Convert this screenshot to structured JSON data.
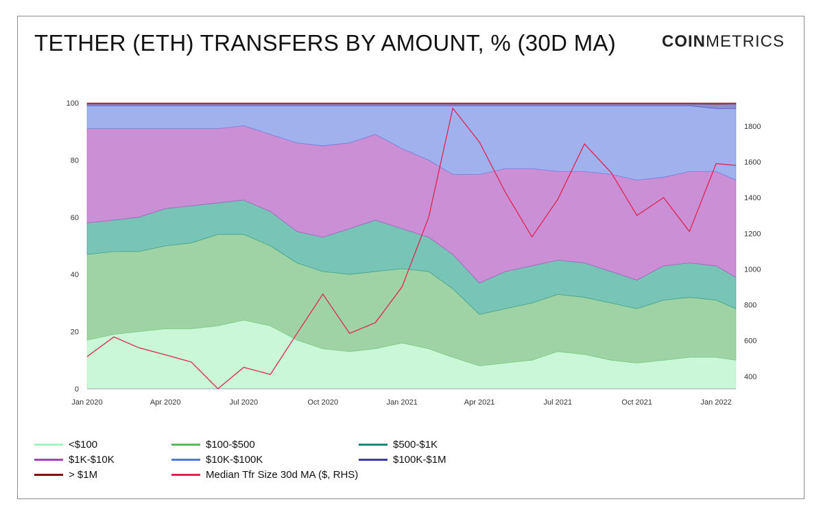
{
  "title": "TETHER (ETH) TRANSFERS BY AMOUNT, % (30D MA)",
  "logo": {
    "bold": "COIN",
    "light": "METRICS"
  },
  "chart_data": {
    "type": "area",
    "stacked": true,
    "x": [
      "2020-01-01",
      "2020-02-01",
      "2020-03-01",
      "2020-04-01",
      "2020-05-01",
      "2020-06-01",
      "2020-07-01",
      "2020-08-01",
      "2020-09-01",
      "2020-10-01",
      "2020-11-01",
      "2020-12-01",
      "2021-01-01",
      "2021-02-01",
      "2021-03-01",
      "2021-04-01",
      "2021-05-01",
      "2021-06-01",
      "2021-07-01",
      "2021-08-01",
      "2021-09-01",
      "2021-10-01",
      "2021-11-01",
      "2021-12-01",
      "2022-01-01",
      "2022-01-24"
    ],
    "x_ticks": [
      "Jan 2020",
      "Apr 2020",
      "Jul 2020",
      "Oct 2020",
      "Jan 2021",
      "Apr 2021",
      "Jul 2021",
      "Oct 2021",
      "Jan 2022"
    ],
    "y_ticks_left": [
      "0",
      "20",
      "40",
      "60",
      "80",
      "100"
    ],
    "y_ticks_right": [
      "400",
      "600",
      "800",
      "1000",
      "1200",
      "1400",
      "1600",
      "1800"
    ],
    "ylim_left": [
      0,
      100
    ],
    "ylim_right": [
      330,
      1930
    ],
    "series": [
      {
        "name": "<$100",
        "color": "#c9f7d8",
        "legend_color": "#a6f2c3",
        "values": [
          17,
          19,
          20,
          21,
          21,
          22,
          24,
          22,
          17,
          14,
          13,
          14,
          16,
          14,
          11,
          8,
          9,
          10,
          13,
          12,
          10,
          9,
          10,
          11,
          11,
          10
        ]
      },
      {
        "name": "$100-$500",
        "color": "#9fd3a6",
        "legend_color": "#5cb85c",
        "values": [
          30,
          29,
          28,
          29,
          30,
          32,
          30,
          28,
          27,
          27,
          27,
          27,
          26,
          27,
          24,
          18,
          19,
          20,
          20,
          20,
          20,
          19,
          21,
          21,
          20,
          18
        ]
      },
      {
        "name": "$500-$1K",
        "color": "#78c5b8",
        "legend_color": "#17897a",
        "values": [
          11,
          11,
          12,
          13,
          13,
          11,
          12,
          12,
          11,
          12,
          16,
          18,
          14,
          12,
          12,
          11,
          13,
          13,
          12,
          12,
          11,
          10,
          12,
          12,
          12,
          11
        ]
      },
      {
        "name": "$1K-$10K",
        "color": "#cb8fd6",
        "legend_color": "#a541bd",
        "values": [
          33,
          32,
          31,
          28,
          27,
          26,
          26,
          27,
          31,
          32,
          30,
          30,
          28,
          27,
          28,
          38,
          36,
          34,
          31,
          32,
          34,
          35,
          31,
          32,
          33,
          34
        ]
      },
      {
        "name": "$10K-$100K",
        "color": "#a1b1ee",
        "legend_color": "#4f78dc",
        "values": [
          8,
          8,
          8,
          8,
          8,
          8,
          7,
          10,
          13,
          14,
          13,
          10,
          15,
          19,
          24,
          24,
          22,
          22,
          23,
          23,
          24,
          26,
          25,
          23,
          22,
          25
        ]
      },
      {
        "name": "$100K-$1M",
        "color": "#8d8dd0",
        "legend_color": "#3b3aa8",
        "values": [
          0.6,
          0.6,
          0.6,
          0.6,
          0.6,
          0.6,
          0.6,
          0.6,
          0.6,
          0.6,
          0.6,
          0.6,
          0.6,
          0.6,
          0.6,
          0.6,
          0.6,
          0.6,
          0.6,
          0.6,
          0.6,
          0.6,
          0.6,
          0.6,
          1.5,
          1.6
        ]
      },
      {
        "name": "> $1M",
        "color": "#b24646",
        "legend_color": "#7a0f10",
        "values": [
          0.4,
          0.4,
          0.4,
          0.4,
          0.4,
          0.4,
          0.4,
          0.4,
          0.4,
          0.4,
          0.4,
          0.4,
          0.4,
          0.4,
          0.4,
          0.4,
          0.4,
          0.4,
          0.4,
          0.4,
          0.4,
          0.4,
          0.4,
          0.4,
          0.5,
          0.4
        ]
      }
    ],
    "line_series": {
      "name": "Median Tfr Size 30d MA ($, RHS)",
      "axis": "right",
      "color": "#e0234e",
      "values": [
        510,
        620,
        560,
        520,
        480,
        330,
        450,
        410,
        640,
        860,
        640,
        700,
        900,
        1290,
        1900,
        1710,
        1430,
        1180,
        1390,
        1700,
        1540,
        1300,
        1400,
        1210,
        1590,
        1580
      ]
    }
  },
  "legend": [
    {
      "label": "<$100",
      "color": "#a6f2c3"
    },
    {
      "label": "$100-$500",
      "color": "#5cb85c"
    },
    {
      "label": "$500-$1K",
      "color": "#17897a"
    },
    {
      "label": "$1K-$10K",
      "color": "#a541bd"
    },
    {
      "label": "$10K-$100K",
      "color": "#4f78dc"
    },
    {
      "label": "$100K-$1M",
      "color": "#3b3aa8"
    },
    {
      "label": "> $1M",
      "color": "#7a0f10"
    },
    {
      "label": "Median Tfr Size 30d MA ($, RHS)",
      "color": "#e0234e"
    }
  ]
}
